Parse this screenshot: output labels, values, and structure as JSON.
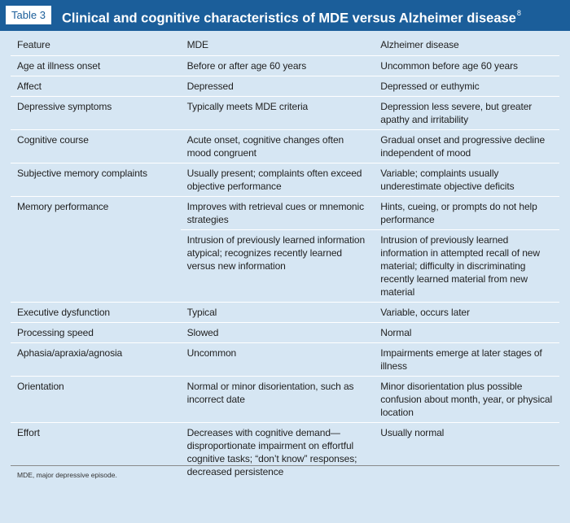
{
  "header": {
    "table_label": "Table 3",
    "title": "Clinical and cognitive characteristics of MDE versus Alzheimer disease",
    "title_ref": "8"
  },
  "columns": [
    "Feature",
    "MDE",
    "Alzheimer disease"
  ],
  "rows": [
    {
      "feature": "Age at illness onset",
      "mde": "Before or after age 60 years",
      "ad": "Uncommon before age 60 years"
    },
    {
      "feature": "Affect",
      "mde": "Depressed",
      "ad": "Depressed or euthymic"
    },
    {
      "feature": "Depressive symptoms",
      "mde": "Typically meets MDE criteria",
      "ad": "Depression less severe, but greater apathy and irritability"
    },
    {
      "feature": "Cognitive course",
      "mde": "Acute onset, cognitive changes often mood congruent",
      "ad": "Gradual onset and progressive decline independent of mood"
    },
    {
      "feature": "Subjective memory complaints",
      "mde": "Usually present; complaints often exceed objective performance",
      "ad": "Variable; complaints usually underestimate objective deficits"
    },
    {
      "feature": "Memory performance",
      "mde": "Improves with retrieval cues or mnemonic strategies",
      "ad": "Hints, cueing, or prompts do not help performance"
    },
    {
      "feature": "",
      "mde": "Intrusion of previously learned information atypical; recognizes recently learned versus new information",
      "ad": "Intrusion of previously learned information in attempted recall of new material; difficulty in discriminating recently learned material from new material"
    },
    {
      "feature": "Executive dysfunction",
      "mde": "Typical",
      "ad": "Variable, occurs later"
    },
    {
      "feature": "Processing speed",
      "mde": "Slowed",
      "ad": "Normal"
    },
    {
      "feature": "Aphasia/apraxia/agnosia",
      "mde": "Uncommon",
      "ad": "Impairments emerge at later stages of illness"
    },
    {
      "feature": "Orientation",
      "mde": "Normal or minor disorientation, such as incorrect date",
      "ad": "Minor disorientation plus possible confusion about month, year, or physical location"
    },
    {
      "feature": "Effort",
      "mde": "Decreases with cognitive demand—disproportionate impairment on effortful cognitive tasks; “don’t know” responses; decreased persistence",
      "ad": "Usually normal"
    }
  ],
  "footnote": "MDE, major depressive episode.",
  "colors": {
    "header_bg": "#1b5e9a",
    "panel_bg": "#d6e6f3"
  }
}
